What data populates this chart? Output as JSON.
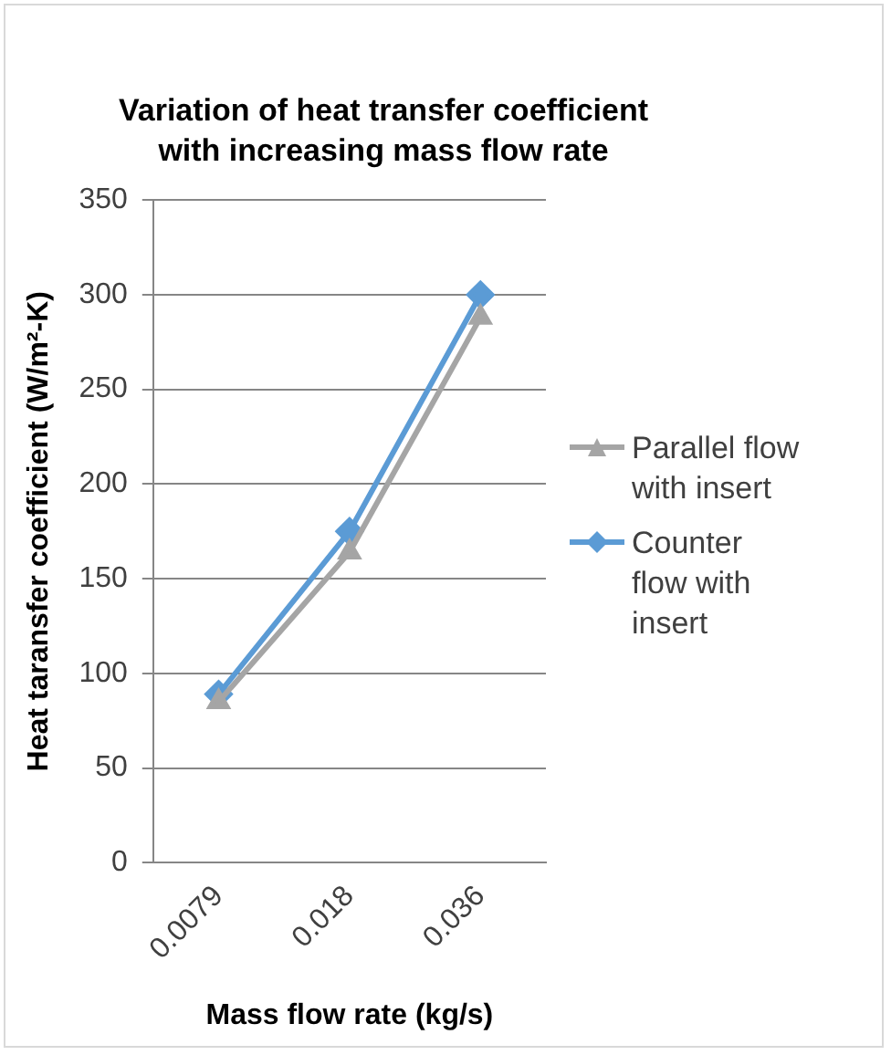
{
  "chart_data": {
    "type": "line",
    "title": "Variation of heat transfer coefficient with increasing mass flow rate",
    "xlabel": "Mass flow rate (kg/s)",
    "ylabel": "Heat taransfer coefficient (W/m²-K)",
    "categories": [
      "0.0079",
      "0.018",
      "0.036"
    ],
    "series": [
      {
        "name": "Parallel flow with insert",
        "color": "#a5a5a5",
        "marker": "triangle",
        "values": [
          85,
          164,
          288
        ]
      },
      {
        "name": "Counter flow with insert",
        "color": "#5b9bd5",
        "marker": "diamond",
        "values": [
          89,
          175,
          300
        ]
      }
    ],
    "ylim": [
      0,
      350
    ],
    "yticks": [
      0,
      50,
      100,
      150,
      200,
      250,
      300,
      350
    ],
    "grid": "y",
    "legend": "right"
  }
}
